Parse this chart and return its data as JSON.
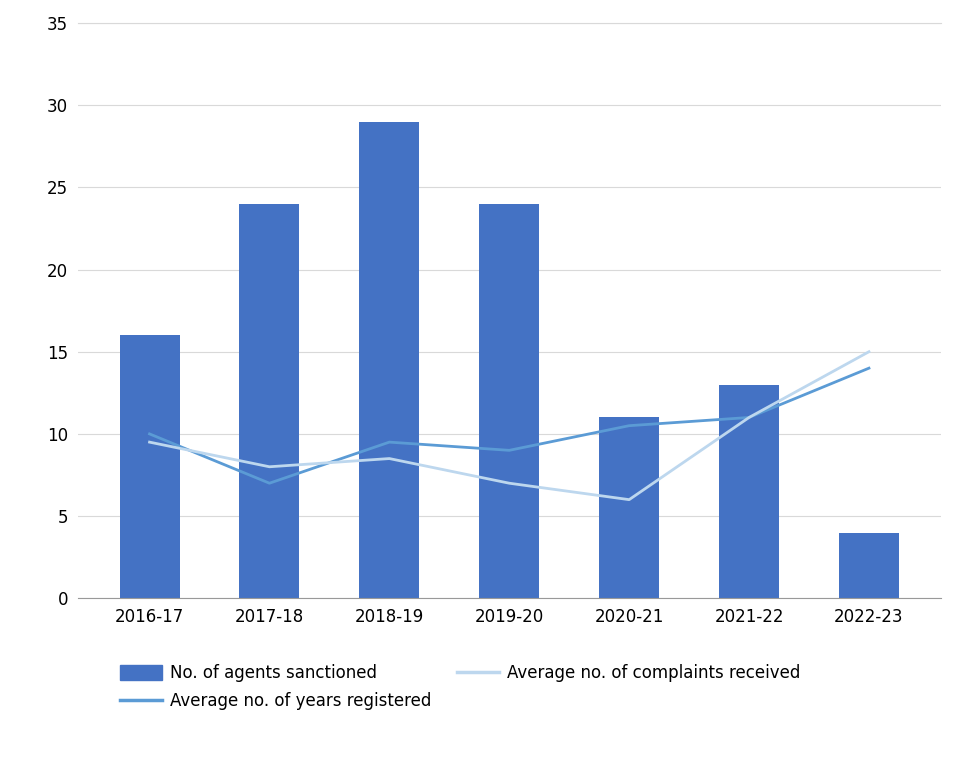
{
  "categories": [
    "2016-17",
    "2017-18",
    "2018-19",
    "2019-20",
    "2020-21",
    "2021-22",
    "2022-23"
  ],
  "agents_sanctioned": [
    16,
    24,
    29,
    24,
    11,
    13,
    4
  ],
  "avg_years_registered": [
    10,
    7,
    9.5,
    9,
    10.5,
    11,
    14
  ],
  "avg_complaints_received": [
    9.5,
    8,
    8.5,
    7,
    6,
    11,
    15
  ],
  "bar_color": "#4472C4",
  "line_years_color": "#5B9BD5",
  "line_complaints_color": "#BDD7EE",
  "ylim": [
    0,
    35
  ],
  "yticks": [
    0,
    5,
    10,
    15,
    20,
    25,
    30,
    35
  ],
  "legend_bar_label": "No. of agents sanctioned",
  "legend_years_label": "Average no. of years registered",
  "legend_complaints_label": "Average no. of complaints received",
  "figsize": [
    9.7,
    7.67
  ],
  "dpi": 100,
  "background_color": "#ffffff",
  "grid_color": "#d9d9d9"
}
